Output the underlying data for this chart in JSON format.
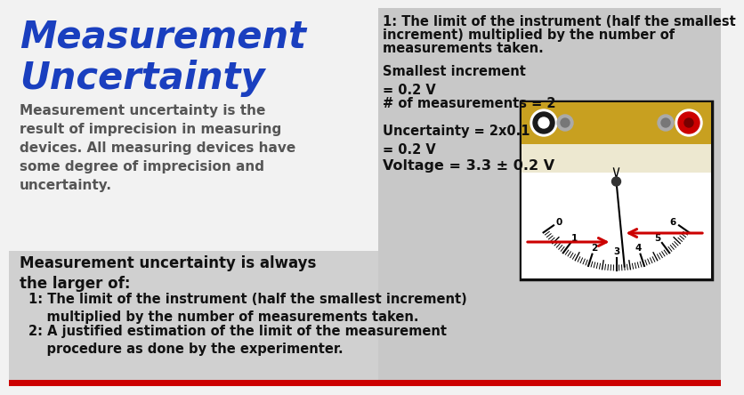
{
  "bg_color": "#e8e8e8",
  "title_line1": "Measurement",
  "title_line2": "Uncertainty",
  "title_color": "#1a3fbf",
  "title_fontsize": 30,
  "body_text": "Measurement uncertainty is the\nresult of imprecision in measuring\ndevices. All measuring devices have\nsome degree of imprecision and\nuncertainty.",
  "body_color": "#555555",
  "body_fontsize": 11,
  "bold_heading": "Measurement uncertainty is always\nthe larger of:",
  "bold_heading_color": "#111111",
  "bold_heading_fontsize": 12,
  "item1": "1: The limit of the instrument (half the smallest increment)\n    multiplied by the number of measurements taken.",
  "item2": "2: A justified estimation of the limit of the measurement\n    procedure as done by the experimenter.",
  "item_color": "#111111",
  "item_fontsize": 10.5,
  "rp_text1_line1": "1: The limit of the instrument (half the smallest",
  "rp_text1_line2": "increment) multiplied by the number of",
  "rp_text1_line3": "measurements taken.",
  "rp_text1_fontsize": 10.5,
  "rp_text1_color": "#111111",
  "rp_smallest": "Smallest increment\n= 0.2 V",
  "rp_measurements": "# of measurements = 2",
  "rp_uncertainty": "Uncertainty = 2x0.1 V\n= 0.2 V",
  "rp_voltage": "Voltage = 3.3 ± 0.2 V",
  "rp_fontsize": 10.5,
  "rp_label_color": "#111111",
  "bottom_bar_color": "#cc0000",
  "right_panel_bg": "#c8c8c8",
  "voltmeter_border": "#111111",
  "voltmeter_gold": "#c8a020",
  "voltmeter_cream": "#f0ead8",
  "scale_nums": [
    "0",
    "1",
    "2",
    "3",
    "4",
    "5",
    "6"
  ]
}
